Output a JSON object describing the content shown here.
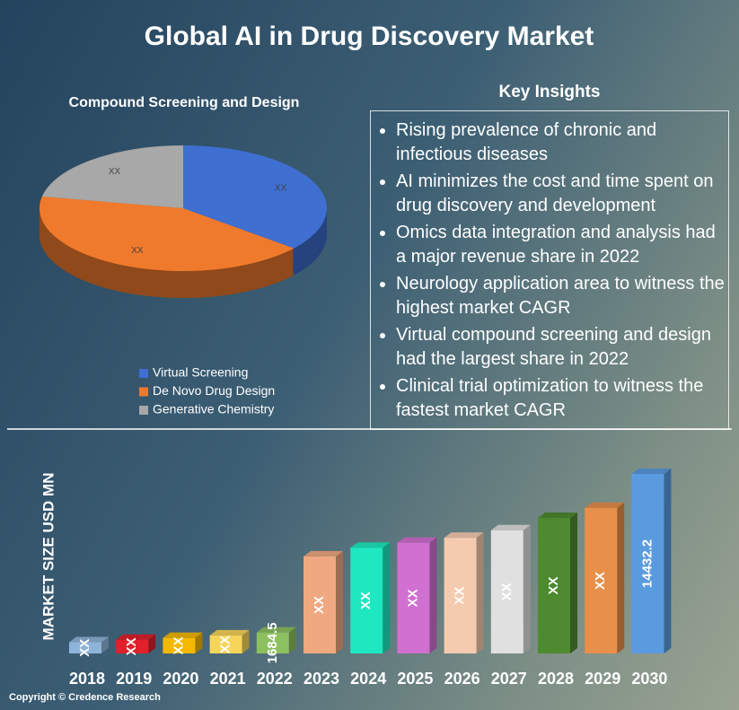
{
  "title": "Global AI in Drug Discovery Market",
  "chart_data": [
    {
      "type": "pie",
      "title": "Compound Screening and Design",
      "categories": [
        "Virtual Screening",
        "De Novo Drug Design",
        "Generative Chemistry"
      ],
      "values": [
        36,
        42,
        22
      ],
      "value_labels": [
        "XX",
        "XX",
        "XX"
      ],
      "colors": [
        "#3f6fd0",
        "#f07a2c",
        "#a8a8a8"
      ]
    },
    {
      "type": "bar",
      "ylabel": "MARKET SIZE USD MN",
      "categories": [
        "2018",
        "2019",
        "2020",
        "2021",
        "2022",
        "2023",
        "2024",
        "2025",
        "2026",
        "2027",
        "2028",
        "2029",
        "2030"
      ],
      "values": [
        900,
        1100,
        1250,
        1450,
        1684.5,
        7800,
        8500,
        8900,
        9300,
        9900,
        10900,
        11700,
        14432.2
      ],
      "value_labels": [
        "XX",
        "XX",
        "XX",
        "XX",
        "1684.5",
        "XX",
        "XX",
        "XX",
        "XX",
        "XX",
        "XX",
        "XX",
        "14432.2"
      ],
      "colors": [
        "#8fb4d9",
        "#e0202a",
        "#f5b800",
        "#f7d55a",
        "#8cc060",
        "#f0a880",
        "#1de8c0",
        "#d070d0",
        "#f5cbb0",
        "#e0e0e0",
        "#4e8a30",
        "#e8904a",
        "#5a9be0"
      ]
    }
  ],
  "insights": {
    "title": "Key Insights",
    "items": [
      "Rising prevalence of chronic and infectious diseases",
      "AI minimizes the cost and time spent on drug discovery and development",
      "Omics data integration and analysis had a major revenue share in 2022",
      "Neurology application area to witness the highest market CAGR",
      "Virtual compound screening and design had the largest share in 2022",
      "Clinical trial optimization to witness the fastest market CAGR"
    ]
  },
  "copyright": "Copyright © Credence Research"
}
